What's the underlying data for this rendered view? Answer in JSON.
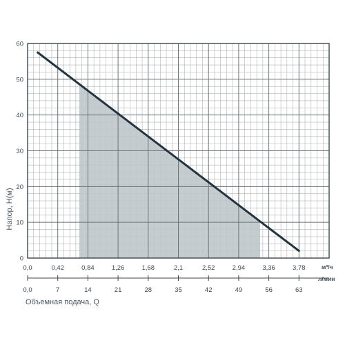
{
  "chart_data": {
    "type": "line",
    "xlabel": "Объемная подача, Q",
    "ylabel": "Напор, H(м)",
    "x_unit": "м³/ч",
    "x2_unit": "л/мин",
    "xlim": [
      0,
      4.2
    ],
    "ylim": [
      0,
      60
    ],
    "x_ticks": {
      "values": [
        0,
        0.42,
        0.84,
        1.26,
        1.68,
        2.1,
        2.52,
        2.94,
        3.36,
        3.78
      ],
      "labels": [
        "0,0",
        "0,42",
        "0,84",
        "1,26",
        "1,68",
        "2,1",
        "2,52",
        "2,94",
        "3,36",
        "3,78"
      ]
    },
    "x2_ticks": {
      "values": [
        0,
        7,
        14,
        21,
        28,
        35,
        42,
        49,
        56,
        63
      ],
      "labels": [
        "0,0",
        "7",
        "14",
        "21",
        "28",
        "35",
        "42",
        "49",
        "56",
        "63"
      ]
    },
    "y_ticks": {
      "values": [
        0,
        10,
        20,
        30,
        40,
        50,
        60
      ],
      "labels": [
        "0",
        "10",
        "20",
        "30",
        "40",
        "50",
        "60"
      ]
    },
    "series": [
      {
        "x": [
          0.14,
          0.84,
          1.68,
          2.52,
          3.36,
          3.78
        ],
        "y": [
          57.5,
          46.8,
          34.0,
          21.2,
          8.4,
          2.0
        ]
      }
    ],
    "shaded_x_range": [
      0.72,
      3.24
    ],
    "grid": true,
    "colors": {
      "line": "#24343e",
      "shade": "#bfc6cb",
      "grid_major": "#6c747a",
      "grid_minor": "#aeb3b7",
      "text": "#3e4b55"
    }
  }
}
